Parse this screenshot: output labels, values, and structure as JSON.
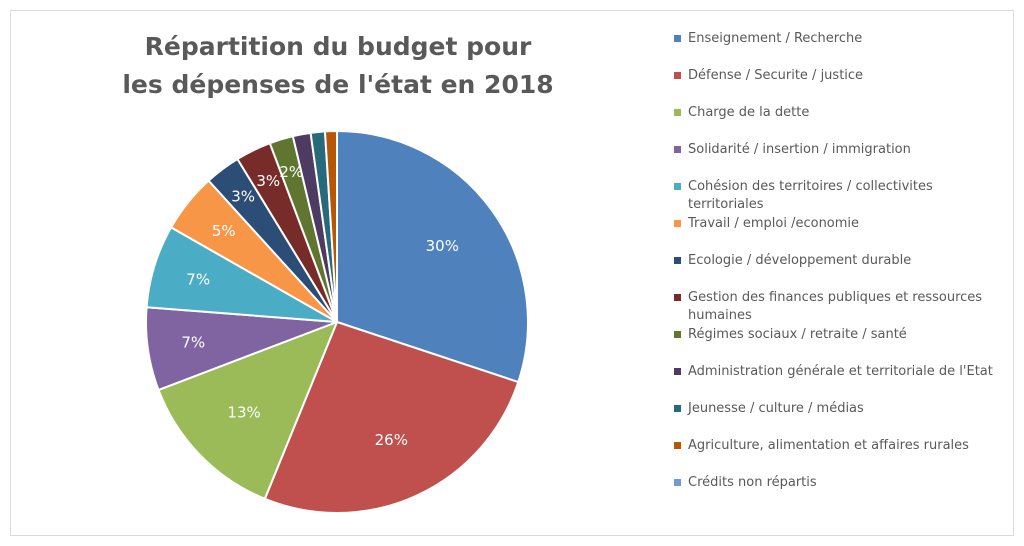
{
  "chart_data": {
    "type": "pie",
    "title": "Répartition du budget pour les dépenses de l'état en 2018",
    "title_lines": [
      "Répartition du budget pour",
      "les dépenses de l'état en 2018"
    ],
    "unit": "%",
    "legend_position": "right",
    "start": "top, clockwise",
    "slices": [
      {
        "label": "Enseignement / Recherche",
        "value": 30,
        "data_label": "30%",
        "color": "#4F81BD"
      },
      {
        "label": "Défense / Securite / justice",
        "value": 26,
        "data_label": "26%",
        "color": "#C0504D"
      },
      {
        "label": "Charge de la dette",
        "value": 13,
        "data_label": "13%",
        "color": "#9BBB59"
      },
      {
        "label": "Solidarité / insertion / immigration",
        "value": 7,
        "data_label": "7%",
        "color": "#8064A2"
      },
      {
        "label": "Cohésion des territoires / collectivites territoriales",
        "value": 7,
        "data_label": "7%",
        "color": "#4BACC6"
      },
      {
        "label": "Travail / emploi /economie",
        "value": 5,
        "data_label": "5%",
        "color": "#F79646"
      },
      {
        "label": "Ecologie / développement durable",
        "value": 3,
        "data_label": "3%",
        "color": "#2C4D75"
      },
      {
        "label": "Gestion des finances publiques et ressources humaines",
        "value": 3,
        "data_label": "3%",
        "color": "#772C2A"
      },
      {
        "label": "Régimes sociaux / retraite / santé",
        "value": 2,
        "data_label": "2%",
        "color": "#5F7530"
      },
      {
        "label": "Administration générale et territoriale de l'Etat",
        "value": 1.5,
        "data_label": "",
        "color": "#4D3B62"
      },
      {
        "label": "Jeunesse / culture / médias",
        "value": 1.2,
        "data_label": "",
        "color": "#276A7C"
      },
      {
        "label": "Agriculture, alimentation et affaires rurales",
        "value": 1,
        "data_label": "",
        "color": "#B65708"
      },
      {
        "label": "Crédits non répartis",
        "value": 0,
        "data_label": "",
        "color": "#729ACA"
      }
    ]
  }
}
